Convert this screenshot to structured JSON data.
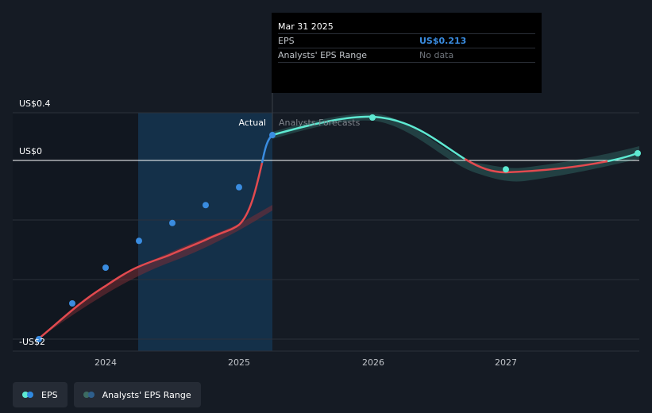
{
  "chart_data": {
    "type": "line",
    "y_unit_labels": [
      "US$0.4",
      "US$0",
      "-US$2"
    ],
    "x_ticks": [
      "2024",
      "2025",
      "2026",
      "2027"
    ],
    "divider_labels": {
      "actual": "Actual",
      "forecast": "Analysts Forecasts"
    },
    "series": [
      {
        "name": "EPS",
        "kind": "actual",
        "points": [
          {
            "x": 2023.5,
            "y": -2.0
          },
          {
            "x": 2023.75,
            "y": -1.6
          },
          {
            "x": 2024.0,
            "y": -1.2
          },
          {
            "x": 2024.25,
            "y": -0.9
          },
          {
            "x": 2024.5,
            "y": -0.7
          },
          {
            "x": 2024.75,
            "y": -0.5
          },
          {
            "x": 2025.0,
            "y": -0.3
          },
          {
            "x": 2025.25,
            "y": 0.213
          }
        ]
      },
      {
        "name": "EPS",
        "kind": "forecast",
        "points": [
          {
            "x": 2025.25,
            "y": 0.213
          },
          {
            "x": 2026.0,
            "y": 0.36
          },
          {
            "x": 2027.0,
            "y": -0.1
          },
          {
            "x": 2028.0,
            "y": 0.05
          }
        ]
      }
    ],
    "tooltip": {
      "date": "Mar 31 2025",
      "eps_label": "EPS",
      "eps_value": "US$0.213",
      "range_label": "Analysts' EPS Range",
      "range_value": "No data"
    },
    "legend": [
      {
        "label": "EPS",
        "colors": [
          "#2f89e0",
          "#5ee9d2"
        ]
      },
      {
        "label": "Analysts' EPS Range",
        "colors": [
          "#2e7fc4",
          "#3d6b62"
        ]
      }
    ],
    "colors": {
      "actual_line": "#e24a4f",
      "actual_marker": "#3a8ce0",
      "forecast_line": "#5ee9d2",
      "forecast_negative_line": "#e24a4f",
      "highlight_band": "#143049",
      "past_band": "#111720",
      "grid": "#2b313a",
      "zero_line": "#ffffff"
    }
  }
}
